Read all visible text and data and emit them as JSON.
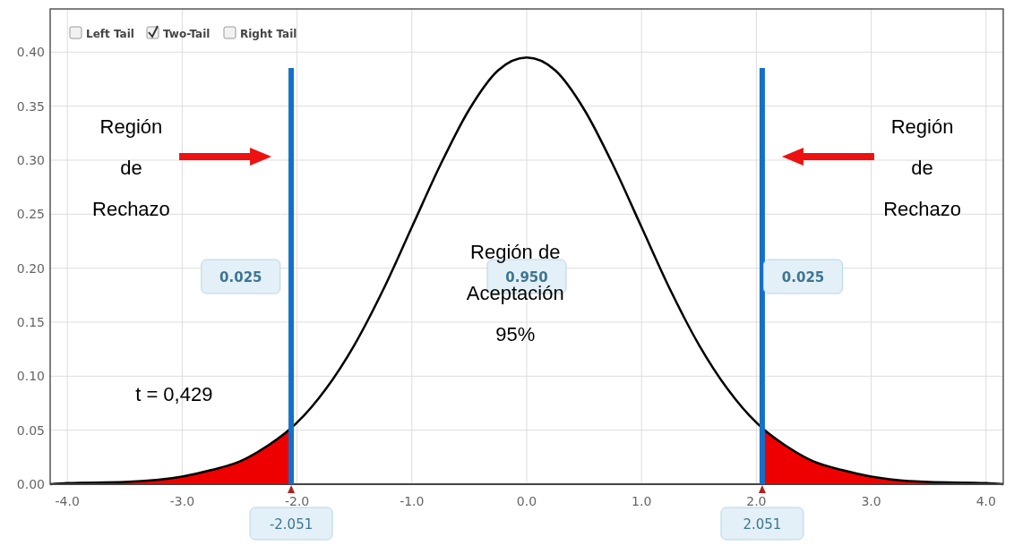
{
  "chart_data": {
    "type": "line",
    "x": [
      -4.15,
      -4,
      -3.5,
      -3,
      -2.75,
      -2.5,
      -2.25,
      -2.051,
      -2,
      -1.75,
      -1.5,
      -1.25,
      -1,
      -0.75,
      -0.5,
      -0.25,
      0,
      0.25,
      0.5,
      0.75,
      1,
      1.25,
      1.5,
      1.75,
      2,
      2.051,
      2.25,
      2.5,
      2.75,
      3,
      3.5,
      4,
      4.15
    ],
    "series": [
      {
        "type": "area",
        "color": "#ee0000",
        "x": [
          -4.15,
          -4,
          -3.5,
          -3,
          -2.75,
          -2.5,
          -2.25,
          -2.051
        ],
        "values": [
          0,
          0.001,
          0.002,
          0.007,
          0.013,
          0.021,
          0.036,
          0.052
        ]
      },
      {
        "type": "area",
        "color": "#ee0000",
        "x": [
          2.051,
          2.25,
          2.5,
          2.75,
          3,
          3.5,
          4,
          4.15
        ],
        "values": [
          0.052,
          0.036,
          0.021,
          0.013,
          0.007,
          0.002,
          0.001,
          0
        ]
      },
      {
        "color": "#000000",
        "values": [
          0,
          0.001,
          0.002,
          0.007,
          0.013,
          0.021,
          0.036,
          0.052,
          0.057,
          0.088,
          0.129,
          0.18,
          0.238,
          0.296,
          0.347,
          0.383,
          0.395,
          0.383,
          0.347,
          0.296,
          0.238,
          0.18,
          0.129,
          0.088,
          0.057,
          0.052,
          0.036,
          0.021,
          0.013,
          0.007,
          0.002,
          0.001,
          0
        ]
      }
    ],
    "xlim": [
      -4.15,
      4.15
    ],
    "xticks": [
      {
        "value": -4,
        "label": "-4.0"
      },
      {
        "value": -3,
        "label": "-3.0"
      },
      {
        "value": -2,
        "label": "-2.0"
      },
      {
        "value": -1,
        "label": "-1.0"
      },
      {
        "value": 0,
        "label": "0.0"
      },
      {
        "value": 1,
        "label": "1.0"
      },
      {
        "value": 2,
        "label": "2.0"
      },
      {
        "value": 3,
        "label": "3.0"
      },
      {
        "value": 4,
        "label": "4.0"
      }
    ],
    "ylim": [
      0,
      0.44
    ],
    "yticks": [
      {
        "value": 0,
        "label": "0.00"
      },
      {
        "value": 0.05,
        "label": "0.05"
      },
      {
        "value": 0.1,
        "label": "0.10"
      },
      {
        "value": 0.15,
        "label": "0.15"
      },
      {
        "value": 0.2,
        "label": "0.20"
      },
      {
        "value": 0.25,
        "label": "0.25"
      },
      {
        "value": 0.3,
        "label": "0.30"
      },
      {
        "value": 0.35,
        "label": "0.35"
      },
      {
        "value": 0.4,
        "label": "0.40"
      }
    ],
    "grid": true,
    "ref_lines": [
      {
        "axis": "x",
        "value": -2.051,
        "label": "-2.051",
        "color": "#1470c8"
      },
      {
        "axis": "x",
        "value": 2.051,
        "label": "2.051",
        "color": "#1470c8"
      }
    ],
    "annotations": [
      "0.025",
      "0.950",
      "0.025",
      "Left Tail",
      "Two-Tail",
      "Right Tail",
      "Región\nde\nRechazo",
      "Región\nde\nRechazo",
      "Región de\nAceptación\n95%",
      "t = 0,429"
    ]
  }
}
